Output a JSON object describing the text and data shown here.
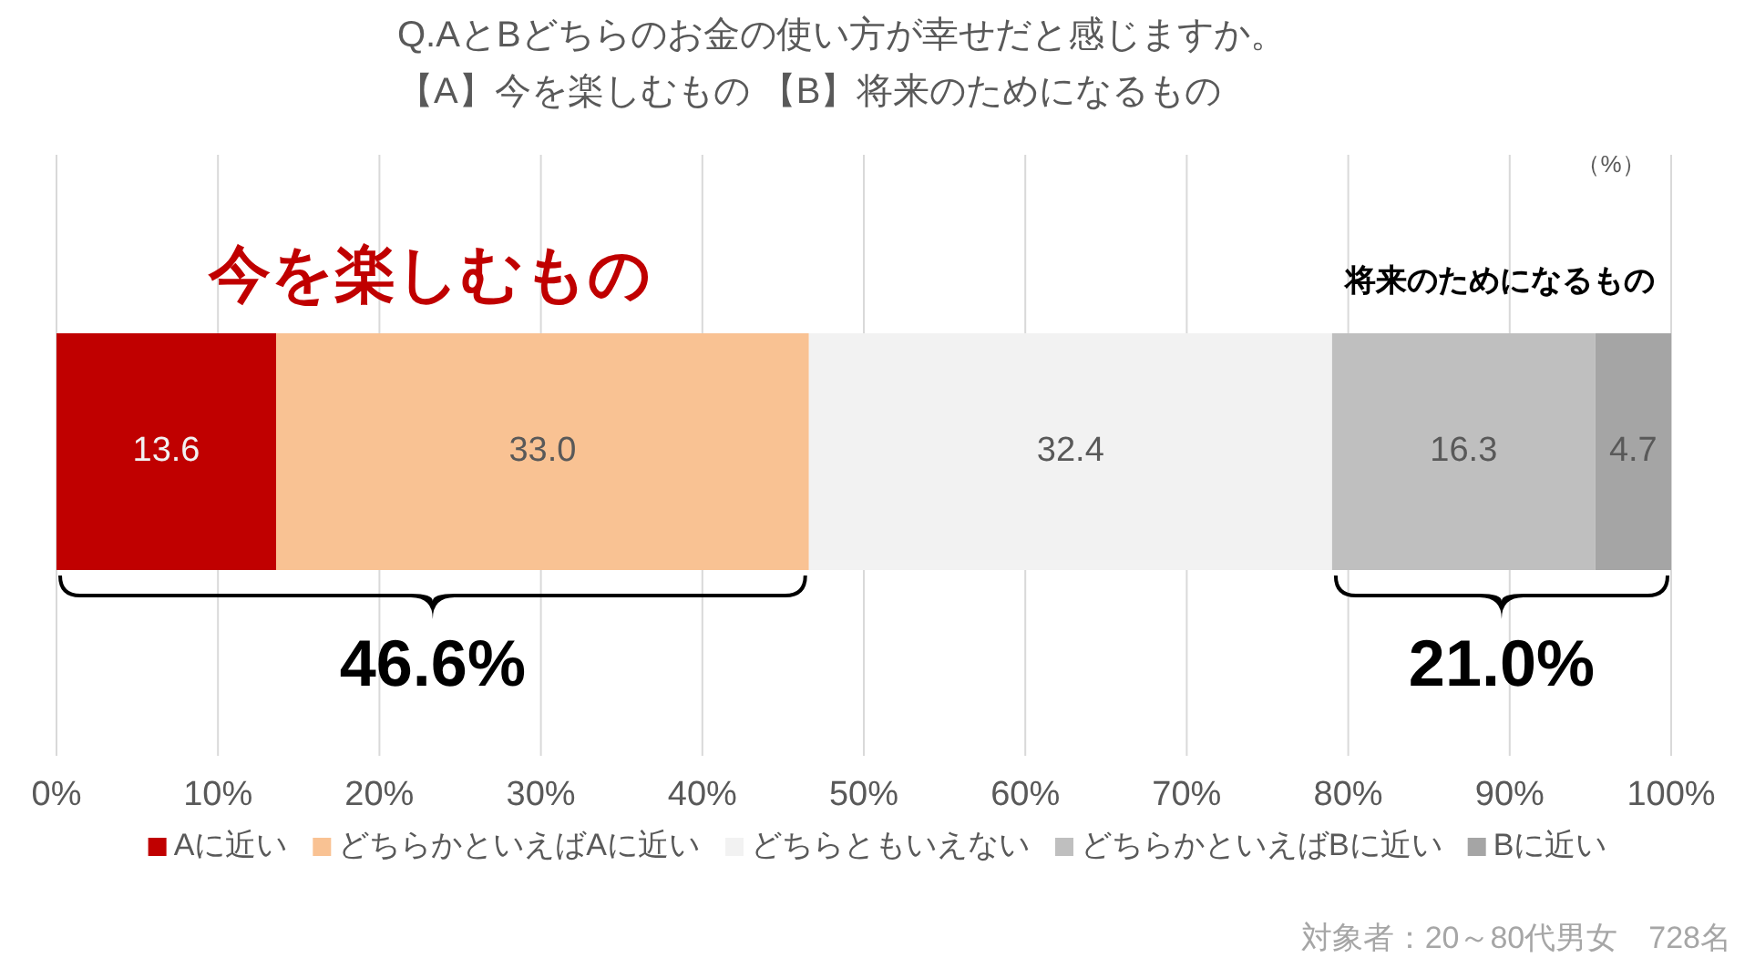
{
  "chart_data": {
    "type": "bar",
    "orientation": "horizontal",
    "stacked": true,
    "title": "Q.AとBどちらのお金の使い方が幸せだと感じますか。",
    "subtitle": "【A】今を楽しむもの 【B】将来のためになるもの",
    "categories": [
      null
    ],
    "series": [
      {
        "name": "Aに近い",
        "color": "#c00000",
        "values": [
          13.6
        ],
        "value_labels": [
          "13.6"
        ]
      },
      {
        "name": "どちらかといえばAに近い",
        "color": "#f9c293",
        "values": [
          33.0
        ],
        "value_labels": [
          "33.0"
        ]
      },
      {
        "name": "どちらともいえない",
        "color": "#f2f2f2",
        "values": [
          32.4
        ],
        "value_labels": [
          "32.4"
        ]
      },
      {
        "name": "どちらかといえばBに近い",
        "color": "#bfbfbf",
        "values": [
          16.3
        ],
        "value_labels": [
          "16.3"
        ]
      },
      {
        "name": "Bに近い",
        "color": "#a5a5a5",
        "values": [
          4.7
        ],
        "value_labels": [
          "4.7"
        ]
      }
    ],
    "xlim": [
      0,
      100
    ],
    "xticks": [
      {
        "value": 0,
        "label": "0%"
      },
      {
        "value": 10,
        "label": "10%"
      },
      {
        "value": 20,
        "label": "20%"
      },
      {
        "value": 30,
        "label": "30%"
      },
      {
        "value": 40,
        "label": "40%"
      },
      {
        "value": 50,
        "label": "50%"
      },
      {
        "value": 60,
        "label": "60%"
      },
      {
        "value": 70,
        "label": "70%"
      },
      {
        "value": 80,
        "label": "80%"
      },
      {
        "value": 90,
        "label": "90%"
      },
      {
        "value": 100,
        "label": "100%"
      }
    ],
    "grid": "x",
    "legend": "bottom",
    "annotations": [
      "今を楽しむもの",
      "将来のためになるもの",
      "46.6%",
      "21.0%",
      "（%）",
      "対象者：20～80代男女　728名"
    ]
  }
}
